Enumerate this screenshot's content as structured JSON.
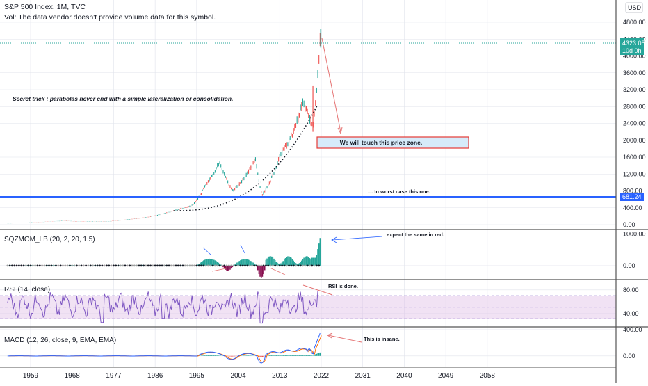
{
  "header": {
    "symbol_line": "S&P 500 Index, 1M, TVC",
    "vol_line": "Vol: The data vendor doesn't provide volume data for this symbol.",
    "currency": "USD"
  },
  "price_badge": {
    "value": "4323.05",
    "countdown": "10d 0h",
    "support_value": "681.24"
  },
  "annotations": {
    "secret_trick": "Secret trick : parabolas never end with a simple lateralization or consolidation.",
    "zone_box": "We will touch this price zone.",
    "worst_case": "... In worst case this one.",
    "expect_red": "expect the same in red.",
    "rsi_done": "RSI is done.",
    "macd_insane": "This is insane."
  },
  "indicators": {
    "sqz_label": "SQZMOM_LB (20, 2, 20, 1.5)",
    "rsi_label": "RSI (14, close)",
    "macd_label": "MACD (12, 26, close, 9, EMA, EMA)"
  },
  "colors": {
    "up": "#26a69a",
    "down": "#ef5350",
    "blue_line": "#2962ff",
    "rsi": "#7e57c2",
    "grid": "#e0e3eb"
  },
  "chart_data": [
    {
      "type": "line",
      "title": "S&P 500 Index, 1M, TVC",
      "x_ticks": [
        "1959",
        "1968",
        "1977",
        "1986",
        "1995",
        "2004",
        "2013",
        "2022",
        "2031",
        "2040",
        "2049",
        "2058"
      ],
      "y_ticks": [
        "4800.00",
        "4400.00",
        "4000.00",
        "3600.00",
        "3200.00",
        "2800.00",
        "2400.00",
        "2000.00",
        "1600.00",
        "1200.00",
        "800.00",
        "400.00",
        "0.00"
      ],
      "ylim": [
        0,
        5000
      ],
      "series": [
        {
          "x": [
            1954,
            1960,
            1966,
            1970,
            1975,
            1980,
            1985,
            1990,
            1994,
            1997,
            2000,
            2002.8,
            2007.8,
            2009.2,
            2013,
            2015.5,
            2018,
            2020.2,
            2021.8
          ],
          "values": [
            30,
            57,
            90,
            75,
            70,
            120,
            190,
            330,
            460,
            950,
            1500,
            800,
            1550,
            700,
            1650,
            2080,
            2900,
            2350,
            4500
          ]
        }
      ],
      "horizontal_line": 681.24,
      "last_value": 4323.05
    },
    {
      "type": "bar",
      "title": "SQZMOM_LB (20, 2, 20, 1.5)",
      "y_ticks": [
        "1000.00",
        "0.00"
      ],
      "ylim": [
        -400,
        1100
      ]
    },
    {
      "type": "line",
      "title": "RSI (14, close)",
      "y_ticks": [
        "80.00",
        "40.00"
      ],
      "ylim": [
        20,
        95
      ],
      "band": [
        30,
        70
      ]
    },
    {
      "type": "line",
      "title": "MACD (12, 26, close, 9, EMA, EMA)",
      "y_ticks": [
        "400.00",
        "0.00"
      ],
      "ylim": [
        -150,
        420
      ]
    }
  ]
}
